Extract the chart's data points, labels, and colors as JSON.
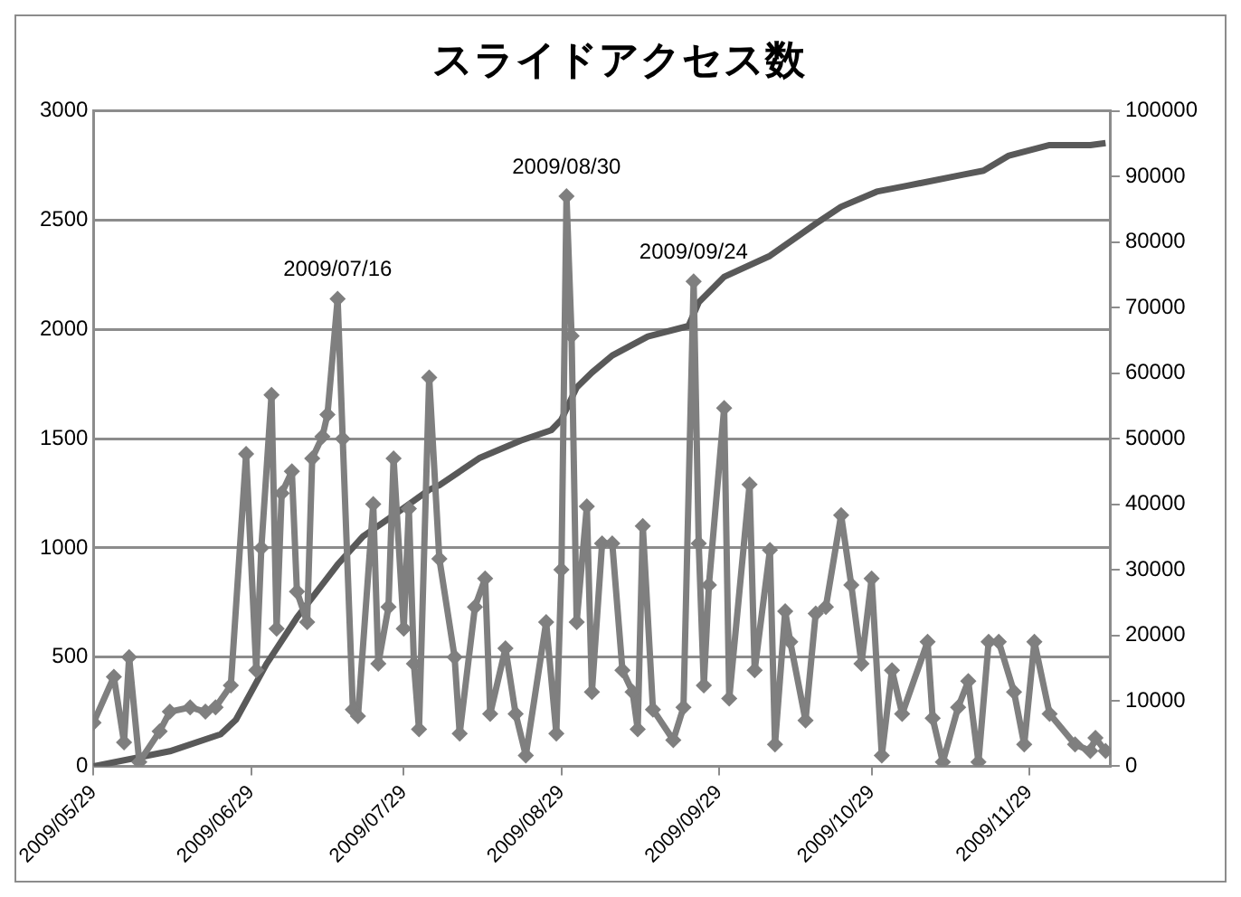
{
  "chart_data": {
    "type": "line",
    "title": "スライドアクセス数",
    "xlim": [
      "2009-05-29",
      "2009-12-15"
    ],
    "xticks": [
      {
        "value": "2009-05-29",
        "label": "2009/05/29"
      },
      {
        "value": "2009-06-29",
        "label": "2009/06/29"
      },
      {
        "value": "2009-07-29",
        "label": "2009/07/29"
      },
      {
        "value": "2009-08-29",
        "label": "2009/08/29"
      },
      {
        "value": "2009-09-29",
        "label": "2009/09/29"
      },
      {
        "value": "2009-10-29",
        "label": "2009/10/29"
      },
      {
        "value": "2009-11-29",
        "label": "2009/11/29"
      }
    ],
    "ylim": [
      0,
      3000
    ],
    "yticks": [
      0,
      500,
      1000,
      1500,
      2000,
      2500,
      3000
    ],
    "y2lim": [
      0,
      100000
    ],
    "y2ticks": [
      0,
      10000,
      20000,
      30000,
      40000,
      50000,
      60000,
      70000,
      80000,
      90000,
      100000
    ],
    "grid": "y",
    "legend": false,
    "line_style": "solid",
    "series": [
      {
        "color": "#7f7f7f",
        "marker": "diamond",
        "x": [
          "2009-05-29",
          "2009-06-02",
          "2009-06-04",
          "2009-06-05",
          "2009-06-07",
          "2009-06-11",
          "2009-06-13",
          "2009-06-17",
          "2009-06-20",
          "2009-06-22",
          "2009-06-25",
          "2009-06-28",
          "2009-06-30",
          "2009-07-01",
          "2009-07-03",
          "2009-07-04",
          "2009-07-05",
          "2009-07-07",
          "2009-07-08",
          "2009-07-10",
          "2009-07-11",
          "2009-07-13",
          "2009-07-14",
          "2009-07-16",
          "2009-07-17",
          "2009-07-19",
          "2009-07-20",
          "2009-07-23",
          "2009-07-24",
          "2009-07-26",
          "2009-07-27",
          "2009-07-29",
          "2009-07-30",
          "2009-07-31",
          "2009-08-01",
          "2009-08-03",
          "2009-08-05",
          "2009-08-08",
          "2009-08-09",
          "2009-08-12",
          "2009-08-14",
          "2009-08-15",
          "2009-08-18",
          "2009-08-20",
          "2009-08-22",
          "2009-08-26",
          "2009-08-28",
          "2009-08-29",
          "2009-08-30",
          "2009-08-31",
          "2009-09-01",
          "2009-09-03",
          "2009-09-04",
          "2009-09-06",
          "2009-09-08",
          "2009-09-10",
          "2009-09-12",
          "2009-09-13",
          "2009-09-14",
          "2009-09-16",
          "2009-09-20",
          "2009-09-22",
          "2009-09-24",
          "2009-09-25",
          "2009-09-26",
          "2009-09-27",
          "2009-09-30",
          "2009-10-01",
          "2009-10-05",
          "2009-10-06",
          "2009-10-09",
          "2009-10-10",
          "2009-10-12",
          "2009-10-13",
          "2009-10-16",
          "2009-10-18",
          "2009-10-20",
          "2009-10-23",
          "2009-10-25",
          "2009-10-27",
          "2009-10-29",
          "2009-10-31",
          "2009-11-02",
          "2009-11-04",
          "2009-11-09",
          "2009-11-10",
          "2009-11-12",
          "2009-11-15",
          "2009-11-17",
          "2009-11-19",
          "2009-11-21",
          "2009-11-23",
          "2009-11-26",
          "2009-11-28",
          "2009-11-30",
          "2009-12-03",
          "2009-12-08",
          "2009-12-11",
          "2009-12-12",
          "2009-12-14"
        ],
        "values": [
          200,
          410,
          110,
          500,
          20,
          160,
          250,
          270,
          250,
          270,
          370,
          1430,
          440,
          1000,
          1700,
          630,
          1250,
          1350,
          800,
          660,
          1410,
          1510,
          1610,
          2140,
          1500,
          260,
          230,
          1200,
          470,
          730,
          1410,
          630,
          1180,
          470,
          170,
          1780,
          950,
          500,
          150,
          730,
          860,
          240,
          540,
          240,
          50,
          660,
          150,
          900,
          2610,
          1970,
          660,
          1190,
          340,
          1020,
          1020,
          440,
          340,
          170,
          1100,
          260,
          120,
          270,
          2220,
          1020,
          370,
          830,
          1640,
          310,
          1290,
          440,
          990,
          100,
          710,
          570,
          210,
          700,
          730,
          1150,
          830,
          470,
          860,
          50,
          440,
          240,
          570,
          220,
          20,
          270,
          390,
          20,
          570,
          570,
          340,
          100,
          570,
          240,
          100,
          70,
          130,
          70
        ]
      },
      {
        "color": "#595959",
        "marker": "none",
        "axis": "y2",
        "x": [
          "2009-05-29",
          "2009-06-13",
          "2009-06-23",
          "2009-06-26",
          "2009-07-02",
          "2009-07-08",
          "2009-07-16",
          "2009-07-21",
          "2009-07-27",
          "2009-08-03",
          "2009-08-05",
          "2009-08-13",
          "2009-08-21",
          "2009-08-27",
          "2009-08-29",
          "2009-09-01",
          "2009-09-04",
          "2009-09-08",
          "2009-09-15",
          "2009-09-23",
          "2009-09-25",
          "2009-09-30",
          "2009-10-09",
          "2009-10-18",
          "2009-10-23",
          "2009-10-30",
          "2009-11-05",
          "2009-11-16",
          "2009-11-20",
          "2009-11-25",
          "2009-12-03",
          "2009-12-11",
          "2009-12-14"
        ],
        "values": [
          0,
          2300,
          4900,
          7100,
          15600,
          22700,
          30800,
          35100,
          38300,
          42200,
          42900,
          47100,
          49700,
          51300,
          52900,
          57800,
          60100,
          62700,
          65600,
          67200,
          70800,
          74700,
          77900,
          82800,
          85400,
          87700,
          88600,
          90300,
          90900,
          93200,
          94800,
          94800,
          95100
        ]
      }
    ],
    "annotations": [
      {
        "text": "2009/07/16",
        "x": "2009-07-16",
        "y": 2140
      },
      {
        "text": "2009/08/30",
        "x": "2009-08-30",
        "y": 2610
      },
      {
        "text": "2009/09/24",
        "x": "2009-09-24",
        "y": 2220
      }
    ]
  }
}
